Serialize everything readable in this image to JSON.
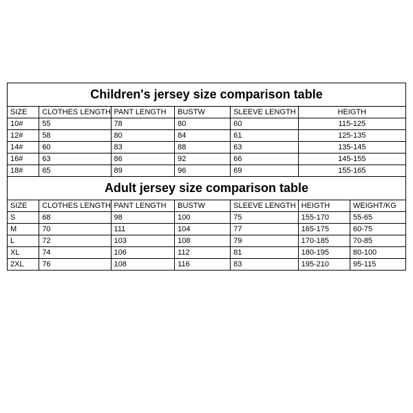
{
  "type": "table",
  "columns": {
    "size": {
      "width_pct": 8,
      "label": "SIZE"
    },
    "clothes": {
      "width_pct": 18,
      "label": "CLOTHES LENGTH"
    },
    "pant": {
      "width_pct": 16,
      "label": "PANT LENGTH"
    },
    "bustw": {
      "width_pct": 14,
      "label": "BUSTW"
    },
    "sleeve": {
      "width_pct": 17,
      "label": "SLEEVE LENGTH"
    },
    "height": {
      "width_pct": 13,
      "label": "HEIGTH"
    },
    "weight": {
      "width_pct": 14,
      "label": "WEIGHT/KG"
    }
  },
  "children": {
    "title": "Children's jersey size comparison table",
    "rows": [
      {
        "size": "10#",
        "clothes": "55",
        "pant": "78",
        "bustw": "80",
        "sleeve": "60",
        "height": "115-125"
      },
      {
        "size": "12#",
        "clothes": "58",
        "pant": "80",
        "bustw": "84",
        "sleeve": "61",
        "height": "125-135"
      },
      {
        "size": "14#",
        "clothes": "60",
        "pant": "83",
        "bustw": "88",
        "sleeve": "63",
        "height": "135-145"
      },
      {
        "size": "16#",
        "clothes": "63",
        "pant": "86",
        "bustw": "92",
        "sleeve": "66",
        "height": "145-155"
      },
      {
        "size": "18#",
        "clothes": "65",
        "pant": "89",
        "bustw": "96",
        "sleeve": "69",
        "height": "155-165"
      }
    ]
  },
  "adult": {
    "title": "Adult jersey size comparison table",
    "rows": [
      {
        "size": "S",
        "clothes": "68",
        "pant": "98",
        "bustw": "100",
        "sleeve": "75",
        "height": "155-170",
        "weight": "55-65"
      },
      {
        "size": "M",
        "clothes": "70",
        "pant": "111",
        "bustw": "104",
        "sleeve": "77",
        "height": "165-175",
        "weight": "60-75"
      },
      {
        "size": "L",
        "clothes": "72",
        "pant": "103",
        "bustw": "108",
        "sleeve": "79",
        "height": "170-185",
        "weight": "70-85"
      },
      {
        "size": "XL",
        "clothes": "74",
        "pant": "106",
        "bustw": "112",
        "sleeve": "81",
        "height": "180-195",
        "weight": "80-100"
      },
      {
        "size": "2XL",
        "clothes": "76",
        "pant": "108",
        "bustw": "116",
        "sleeve": "83",
        "height": "195-210",
        "weight": "95-115"
      }
    ]
  }
}
